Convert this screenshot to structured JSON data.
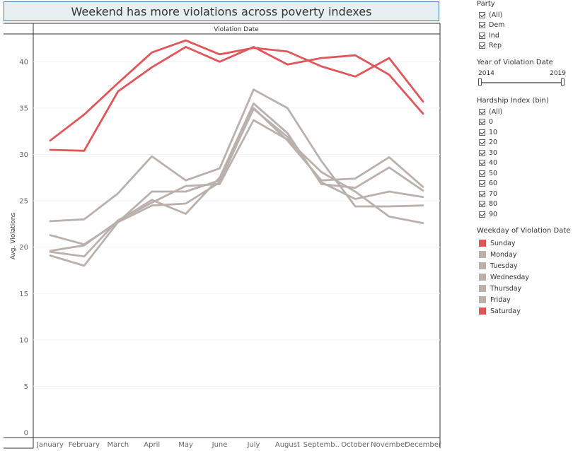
{
  "title": "Weekend has more violations across poverty indexes",
  "column_header": "Violation Date",
  "filters": {
    "party": {
      "title": "Party",
      "items": [
        "(All)",
        "Dem",
        "Ind",
        "Rep"
      ]
    },
    "year": {
      "title": "Year of Violation Date",
      "min": "2014",
      "max": "2019"
    },
    "hardship": {
      "title": "Hardship Index (bin)",
      "items": [
        "(All)",
        "0",
        "10",
        "20",
        "30",
        "40",
        "50",
        "60",
        "70",
        "80",
        "90"
      ]
    },
    "weekday_legend": {
      "title": "Weekday of Violation Date",
      "items": [
        {
          "label": "Sunday",
          "color": "#e15759"
        },
        {
          "label": "Monday",
          "color": "#bab0ac"
        },
        {
          "label": "Tuesday",
          "color": "#bab0ac"
        },
        {
          "label": "Wednesday",
          "color": "#bab0ac"
        },
        {
          "label": "Thursday",
          "color": "#bab0ac"
        },
        {
          "label": "Friday",
          "color": "#bab0ac"
        },
        {
          "label": "Saturday",
          "color": "#e15759"
        }
      ]
    }
  },
  "chart_data": {
    "type": "line",
    "title": "Weekend has more violations across poverty indexes",
    "xlabel": "Violation Date",
    "ylabel": "Avg. Violations",
    "ylim": [
      0,
      43
    ],
    "yticks": [
      0,
      5,
      10,
      15,
      20,
      25,
      30,
      35,
      40
    ],
    "categories": [
      "January",
      "February",
      "March",
      "April",
      "May",
      "June",
      "July",
      "August",
      "Septemb..",
      "October",
      "November",
      "December"
    ],
    "series": [
      {
        "name": "Sunday",
        "color": "#e15759",
        "values": [
          31.5,
          34.3,
          37.7,
          41.0,
          42.3,
          40.8,
          41.5,
          41.1,
          39.5,
          38.4,
          40.4,
          35.7
        ]
      },
      {
        "name": "Saturday",
        "color": "#e15759",
        "values": [
          30.5,
          30.4,
          36.8,
          39.4,
          41.6,
          40.0,
          41.6,
          39.7,
          40.4,
          40.7,
          38.6,
          34.4
        ]
      },
      {
        "name": "Monday",
        "color": "#bab0ac",
        "values": [
          22.8,
          23.0,
          25.8,
          29.8,
          27.2,
          28.5,
          37.0,
          35.0,
          29.3,
          24.4,
          24.4,
          24.5
        ]
      },
      {
        "name": "Tuesday",
        "color": "#bab0ac",
        "values": [
          21.3,
          20.3,
          22.7,
          24.5,
          24.7,
          27.0,
          35.0,
          31.5,
          27.2,
          27.4,
          29.7,
          26.5
        ]
      },
      {
        "name": "Wednesday",
        "color": "#bab0ac",
        "values": [
          19.6,
          20.2,
          22.8,
          25.1,
          23.6,
          27.5,
          35.5,
          32.3,
          26.8,
          26.4,
          28.6,
          26.1
        ]
      },
      {
        "name": "Thursday",
        "color": "#bab0ac",
        "values": [
          19.1,
          18.0,
          22.7,
          26.0,
          26.0,
          27.2,
          34.9,
          31.9,
          27.0,
          25.2,
          26.0,
          25.4
        ]
      },
      {
        "name": "Friday",
        "color": "#bab0ac",
        "values": [
          19.5,
          19.0,
          22.9,
          24.8,
          26.6,
          26.8,
          33.7,
          31.6,
          28.1,
          26.0,
          23.3,
          22.6
        ]
      }
    ]
  }
}
